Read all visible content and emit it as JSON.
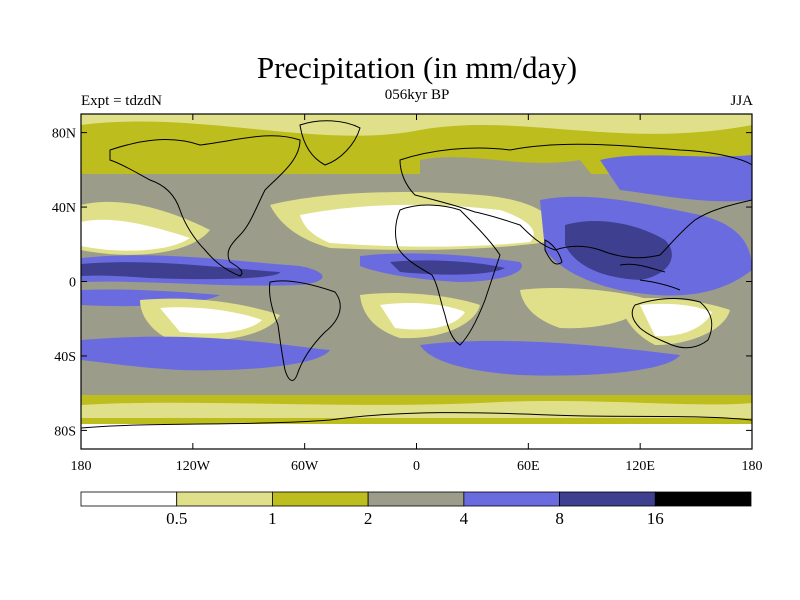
{
  "header": {
    "title": "Precipitation (in mm/day)",
    "experiment": "Expt = tdzdN",
    "period": "056kyr BP",
    "season": "JJA"
  },
  "axes": {
    "lat_ticks": [
      "80N",
      "40N",
      "0",
      "40S",
      "80S"
    ],
    "lon_ticks": [
      "180",
      "120W",
      "60W",
      "0",
      "60E",
      "120E",
      "180"
    ]
  },
  "colorbar": {
    "labels": [
      "0.5",
      "1",
      "2",
      "4",
      "8",
      "16"
    ],
    "colors": [
      "#ffffff",
      "#e0e08a",
      "#bdbd1e",
      "#9c9c8a",
      "#6b6be0",
      "#3f3f8f",
      "#000000"
    ]
  },
  "palette": {
    "ocean_band": "#9c9c8a",
    "coast": "#000000"
  }
}
